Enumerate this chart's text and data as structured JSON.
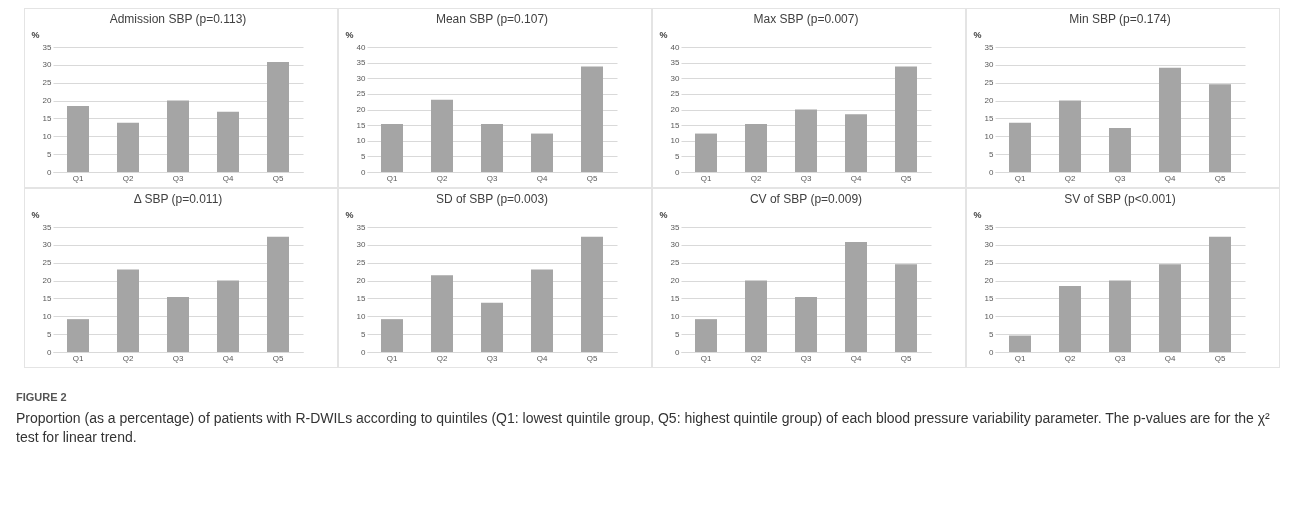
{
  "chart_data": [
    {
      "type": "bar",
      "title": "Admission SBP (p=0.113)",
      "ylabel": "%",
      "categories": [
        "Q1",
        "Q2",
        "Q3",
        "Q4",
        "Q5"
      ],
      "values": [
        18.5,
        13.8,
        20,
        16.9,
        30.8
      ],
      "color": "#a5a5a5",
      "ylim": [
        0,
        35
      ],
      "yticks": [
        0,
        5,
        10,
        15,
        20,
        25,
        30,
        35
      ],
      "grid": "y"
    },
    {
      "type": "bar",
      "title": "Mean SBP (p=0.107)",
      "ylabel": "%",
      "categories": [
        "Q1",
        "Q2",
        "Q3",
        "Q4",
        "Q5"
      ],
      "values": [
        15.4,
        23.1,
        15.4,
        12.3,
        33.8
      ],
      "color": "#a5a5a5",
      "ylim": [
        0,
        40
      ],
      "yticks": [
        0,
        5,
        10,
        15,
        20,
        25,
        30,
        35,
        40
      ],
      "grid": "y"
    },
    {
      "type": "bar",
      "title": "Max SBP (p=0.007)",
      "ylabel": "%",
      "categories": [
        "Q1",
        "Q2",
        "Q3",
        "Q4",
        "Q5"
      ],
      "values": [
        12.3,
        15.4,
        20,
        18.5,
        33.8
      ],
      "color": "#a5a5a5",
      "ylim": [
        0,
        40
      ],
      "yticks": [
        0,
        5,
        10,
        15,
        20,
        25,
        30,
        35,
        40
      ],
      "grid": "y"
    },
    {
      "type": "bar",
      "title": "Min SBP (p=0.174)",
      "ylabel": "%",
      "categories": [
        "Q1",
        "Q2",
        "Q3",
        "Q4",
        "Q5"
      ],
      "values": [
        13.8,
        20,
        12.3,
        29.2,
        24.6
      ],
      "color": "#a5a5a5",
      "ylim": [
        0,
        35
      ],
      "yticks": [
        0,
        5,
        10,
        15,
        20,
        25,
        30,
        35
      ],
      "grid": "y"
    },
    {
      "type": "bar",
      "title": "Δ SBP (p=0.011)",
      "ylabel": "%",
      "categories": [
        "Q1",
        "Q2",
        "Q3",
        "Q4",
        "Q5"
      ],
      "values": [
        9.2,
        23.1,
        15.4,
        20,
        32.3
      ],
      "color": "#a5a5a5",
      "ylim": [
        0,
        35
      ],
      "yticks": [
        0,
        5,
        10,
        15,
        20,
        25,
        30,
        35
      ],
      "grid": "y"
    },
    {
      "type": "bar",
      "title": "SD of SBP (p=0.003)",
      "ylabel": "%",
      "categories": [
        "Q1",
        "Q2",
        "Q3",
        "Q4",
        "Q5"
      ],
      "values": [
        9.2,
        21.5,
        13.8,
        23.1,
        32.3
      ],
      "color": "#a5a5a5",
      "ylim": [
        0,
        35
      ],
      "yticks": [
        0,
        5,
        10,
        15,
        20,
        25,
        30,
        35
      ],
      "grid": "y"
    },
    {
      "type": "bar",
      "title": "CV of SBP (p=0.009)",
      "ylabel": "%",
      "categories": [
        "Q1",
        "Q2",
        "Q3",
        "Q4",
        "Q5"
      ],
      "values": [
        9.2,
        20,
        15.4,
        30.8,
        24.6
      ],
      "color": "#a5a5a5",
      "ylim": [
        0,
        35
      ],
      "yticks": [
        0,
        5,
        10,
        15,
        20,
        25,
        30,
        35
      ],
      "grid": "y"
    },
    {
      "type": "bar",
      "title": "SV of SBP (p<0.001)",
      "ylabel": "%",
      "categories": [
        "Q1",
        "Q2",
        "Q3",
        "Q4",
        "Q5"
      ],
      "values": [
        4.6,
        18.5,
        20,
        24.6,
        32.3
      ],
      "color": "#a5a5a5",
      "ylim": [
        0,
        35
      ],
      "yticks": [
        0,
        5,
        10,
        15,
        20,
        25,
        30,
        35
      ],
      "grid": "y",
      "annotations": [
        "FIGURE 2",
        "Proportion (as a percentage) of patients with R-DWILs according to quintiles (Q1: lowest quintile group, Q5: highest quintile group) of each blood pressure variability parameter. The p-values are for the χ² test for linear trend."
      ]
    }
  ]
}
